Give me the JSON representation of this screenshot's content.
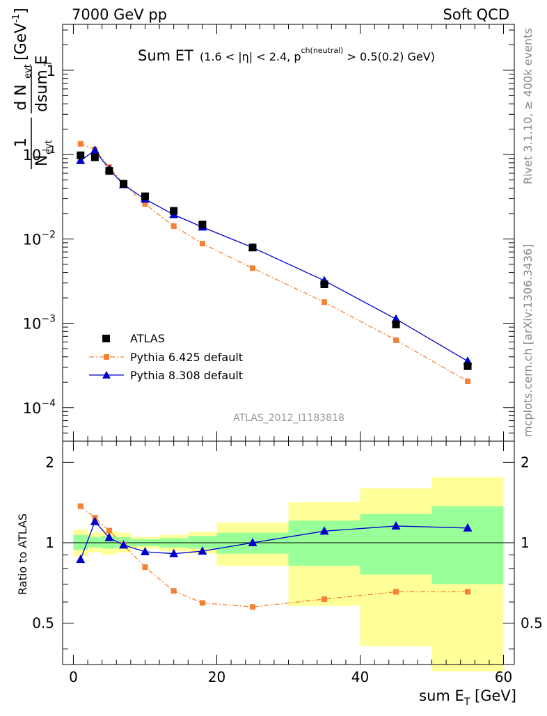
{
  "header": {
    "left": "7000 GeV pp",
    "right": "Soft QCD"
  },
  "side_text": {
    "rivet": "Rivet 3.1.10, ≥ 400k events",
    "mcplots": "mcplots.cern.ch [arXiv:1306.3436]"
  },
  "title": {
    "main": "Sum ET",
    "cond_a": "(1.6 < |",
    "cond_eta": "η",
    "cond_b": "| < 2.4, p",
    "cond_sup": "ch(neutral)",
    "cond_c": " > 0.5(0.2) GeV)"
  },
  "ylabel_top": {
    "one": "1",
    "n": "N",
    "evt": "evt",
    "dn": "d N",
    "dsum": "dsum E",
    "t": "T",
    "unit": "[GeV",
    "unit_exp": "-1",
    "unit_close": "]"
  },
  "ylabel_bottom": "Ratio to ATLAS",
  "xlabel": {
    "base": "sum E",
    "sub": "T",
    "unit": " [GeV]"
  },
  "analysis_ref": "ATLAS_2012_I1183818",
  "legend": {
    "atlas": "ATLAS",
    "py6": "Pythia 6.425 default",
    "py8": "Pythia 8.308 default"
  },
  "colors": {
    "data": "#000000",
    "py6": "#f58234",
    "py8": "#0000cc",
    "band_inner": "#99ff99",
    "band_outer": "#ffff99"
  },
  "chart_data": [
    {
      "type": "scatter",
      "panel": "main",
      "yscale": "log",
      "xlim": [
        -1.5,
        61.5
      ],
      "ylim": [
        4e-05,
        3.5
      ],
      "yticks": [
        {
          "value": 1,
          "mantissa": "1",
          "exp": ""
        },
        {
          "value": 0.1,
          "mantissa": "10",
          "exp": "−1"
        },
        {
          "value": 0.01,
          "mantissa": "10",
          "exp": "−2"
        },
        {
          "value": 0.001,
          "mantissa": "10",
          "exp": "−3"
        },
        {
          "value": 0.0001,
          "mantissa": "10",
          "exp": "−4"
        }
      ],
      "series": [
        {
          "name": "ATLAS",
          "marker": "square",
          "x": [
            1,
            3,
            5,
            7,
            10,
            14,
            18,
            25,
            35,
            45,
            55
          ],
          "y": [
            0.098,
            0.093,
            0.064,
            0.045,
            0.032,
            0.0215,
            0.0148,
            0.0079,
            0.0029,
            0.00097,
            0.00031
          ]
        },
        {
          "name": "Pythia 6.425 default",
          "marker": "square-small",
          "line": "dashdot",
          "x": [
            1,
            3,
            5,
            7,
            10,
            14,
            18,
            25,
            35,
            45,
            55
          ],
          "y": [
            0.134,
            0.115,
            0.071,
            0.045,
            0.026,
            0.0142,
            0.0088,
            0.0045,
            0.00178,
            0.00063,
            0.000205
          ]
        },
        {
          "name": "Pythia 8.308 default",
          "marker": "triangle",
          "line": "solid",
          "x": [
            1,
            3,
            5,
            7,
            10,
            14,
            18,
            25,
            35,
            45,
            55
          ],
          "y": [
            0.085,
            0.112,
            0.067,
            0.044,
            0.0296,
            0.0194,
            0.0138,
            0.0079,
            0.0032,
            0.00112,
            0.000355
          ]
        }
      ]
    },
    {
      "type": "line",
      "panel": "ratio",
      "yscale": "log",
      "xlabel": "sum E_T [GeV]",
      "ylabel": "Ratio to ATLAS",
      "xlim": [
        -1.5,
        61.5
      ],
      "ylim": [
        0.35,
        2.4
      ],
      "xticks": [
        0,
        20,
        40,
        60
      ],
      "yticks": [
        0.5,
        1,
        2
      ],
      "ytick_labels": [
        "0.5",
        "1",
        "2"
      ],
      "bands": {
        "edges": [
          0,
          2,
          4,
          6,
          8,
          12,
          16,
          20,
          30,
          40,
          50,
          60
        ],
        "inner": [
          [
            0.94,
            1.07
          ],
          [
            0.96,
            1.05
          ],
          [
            0.95,
            1.06
          ],
          [
            0.96,
            1.05
          ],
          [
            0.97,
            1.03
          ],
          [
            0.96,
            1.04
          ],
          [
            0.95,
            1.06
          ],
          [
            0.91,
            1.09
          ],
          [
            0.82,
            1.21
          ],
          [
            0.76,
            1.28
          ],
          [
            0.7,
            1.37
          ]
        ],
        "outer": [
          [
            0.89,
            1.12
          ],
          [
            0.92,
            1.09
          ],
          [
            0.9,
            1.11
          ],
          [
            0.92,
            1.09
          ],
          [
            0.95,
            1.05
          ],
          [
            0.93,
            1.07
          ],
          [
            0.91,
            1.1
          ],
          [
            0.82,
            1.19
          ],
          [
            0.58,
            1.42
          ],
          [
            0.41,
            1.6
          ],
          [
            0.33,
            1.76
          ]
        ]
      },
      "series": [
        {
          "name": "Pythia 6.425 default",
          "x": [
            1,
            3,
            5,
            7,
            10,
            14,
            18,
            25,
            35,
            45,
            55
          ],
          "y": [
            1.37,
            1.24,
            1.11,
            0.98,
            0.81,
            0.66,
            0.595,
            0.575,
            0.615,
            0.655,
            0.655
          ]
        },
        {
          "name": "Pythia 8.308 default",
          "x": [
            1,
            3,
            5,
            7,
            10,
            14,
            18,
            25,
            35,
            45,
            55
          ],
          "y": [
            0.865,
            1.2,
            1.045,
            0.98,
            0.925,
            0.91,
            0.93,
            1.0,
            1.105,
            1.155,
            1.135
          ]
        }
      ]
    }
  ]
}
